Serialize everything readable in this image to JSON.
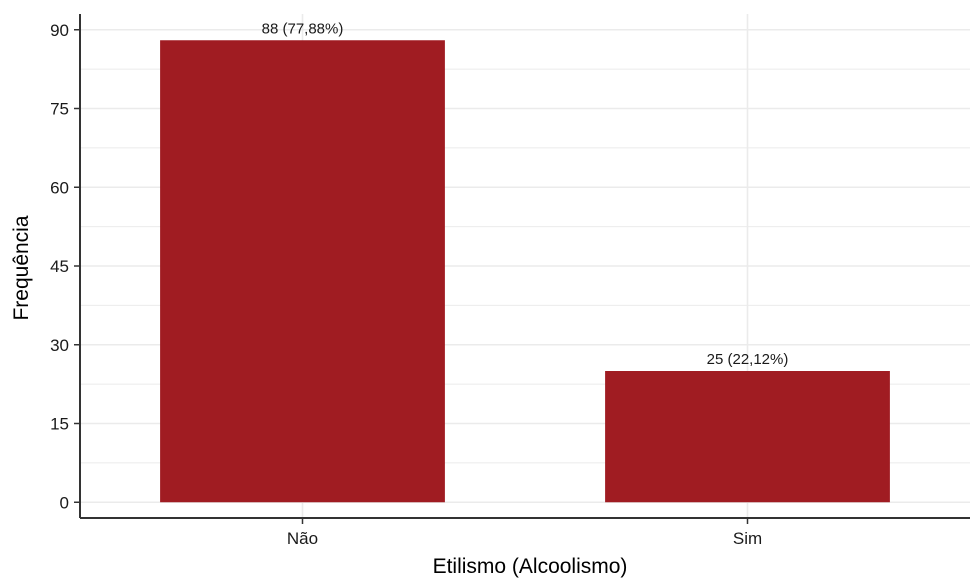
{
  "chart_data": {
    "type": "bar",
    "categories": [
      "Não",
      "Sim"
    ],
    "values": [
      88,
      25
    ],
    "data_labels": [
      "88 (77,88%)",
      "25 (22,12%)"
    ],
    "xlabel": "Etilismo (Alcoolismo)",
    "ylabel": "Frequência",
    "yticks": [
      0,
      15,
      30,
      45,
      60,
      75,
      90
    ],
    "ylim": [
      -3,
      93
    ],
    "grid": true,
    "bar_color": "#a01c22",
    "grid_color": "#ebebeb",
    "axis_color": "#333333"
  }
}
